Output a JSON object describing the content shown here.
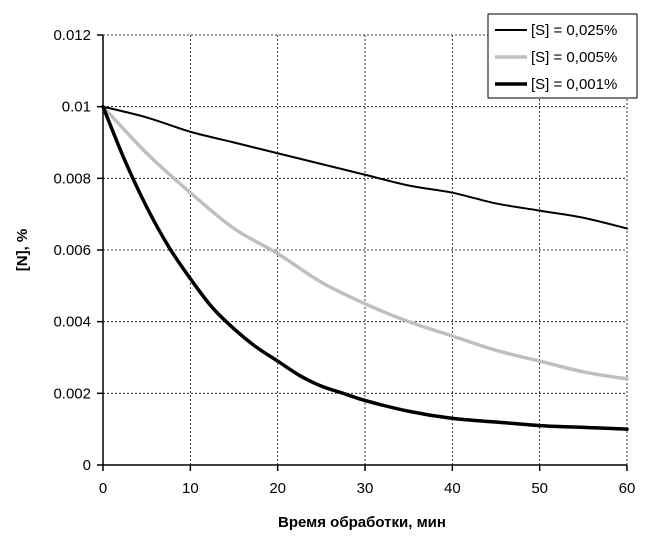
{
  "chart_data": {
    "type": "line",
    "title": "",
    "xlabel": "Время обработки, мин",
    "ylabel": "[N], %",
    "xlim": [
      0,
      60
    ],
    "ylim": [
      0,
      0.012
    ],
    "x_ticks": [
      "0",
      "10",
      "20",
      "30",
      "40",
      "50",
      "60"
    ],
    "y_ticks": [
      "0",
      "0.002",
      "0.004",
      "0.006",
      "0.008",
      "0.01",
      "0.012"
    ],
    "grid": true,
    "legend_position": "top-right",
    "series": [
      {
        "name": "[S] = 0,025%",
        "color": "#000000",
        "width": 2,
        "x": [
          0,
          5,
          10,
          15,
          20,
          25,
          30,
          35,
          40,
          45,
          50,
          55,
          60
        ],
        "y": [
          0.01,
          0.0097,
          0.0093,
          0.009,
          0.0087,
          0.0084,
          0.0081,
          0.0078,
          0.0076,
          0.0073,
          0.0071,
          0.0069,
          0.0066
        ]
      },
      {
        "name": "[S] = 0,005%",
        "color": "#bfbfbf",
        "width": 3.5,
        "x": [
          0,
          5,
          10,
          15,
          20,
          25,
          30,
          35,
          40,
          45,
          50,
          55,
          60
        ],
        "y": [
          0.01,
          0.0087,
          0.0076,
          0.0066,
          0.0059,
          0.0051,
          0.0045,
          0.004,
          0.0036,
          0.0032,
          0.0029,
          0.0026,
          0.0024
        ]
      },
      {
        "name": "[S] = 0,001%",
        "color": "#000000",
        "width": 3.5,
        "x": [
          0,
          2.5,
          5,
          7.5,
          10,
          12.5,
          15,
          17.5,
          20,
          22.5,
          25,
          27.5,
          30,
          35,
          40,
          45,
          50,
          55,
          60
        ],
        "y": [
          0.01,
          0.0085,
          0.0072,
          0.0061,
          0.0052,
          0.0044,
          0.0038,
          0.0033,
          0.0029,
          0.0025,
          0.0022,
          0.002,
          0.0018,
          0.0015,
          0.0013,
          0.0012,
          0.0011,
          0.00105,
          0.001
        ]
      }
    ]
  }
}
